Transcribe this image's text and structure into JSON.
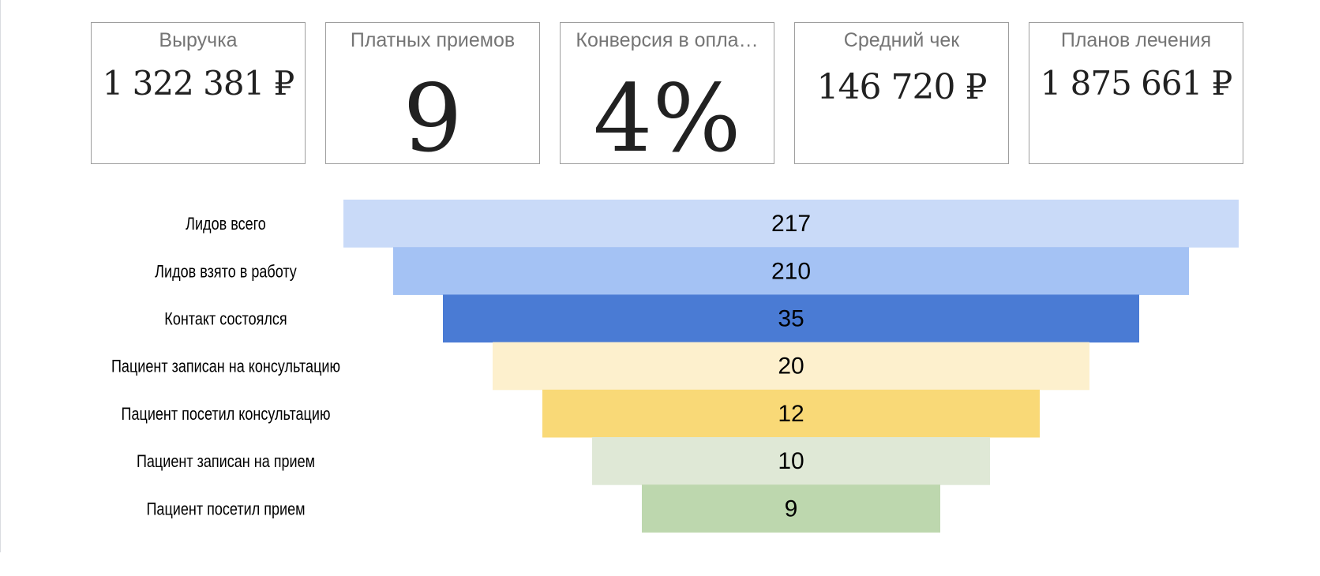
{
  "kpis": [
    {
      "title": "Выручка",
      "value": "1 322 381 ₽"
    },
    {
      "title": "Платных приемов",
      "value": "9"
    },
    {
      "title": "Конверсия в опла…",
      "value": "4%"
    },
    {
      "title": "Средний чек",
      "value": "146 720 ₽"
    },
    {
      "title": "Планов лечения",
      "value": "1 875 661 ₽"
    }
  ],
  "chart_data": {
    "type": "bar",
    "orientation": "funnel",
    "categories": [
      "Лидов всего",
      "Лидов взято в работу",
      "Контакт состоялся",
      "Пациент записан на консультацию",
      "Пациент посетил консультацию",
      "Пациент записан на прием",
      "Пациент посетил прием"
    ],
    "values": [
      217,
      210,
      35,
      20,
      12,
      10,
      9
    ],
    "colors": [
      "#c9daf8",
      "#a4c2f4",
      "#4a7bd4",
      "#fdf0cd",
      "#f9d977",
      "#dfe8d6",
      "#bdd7ae"
    ],
    "data_labels": true,
    "grid": false
  }
}
